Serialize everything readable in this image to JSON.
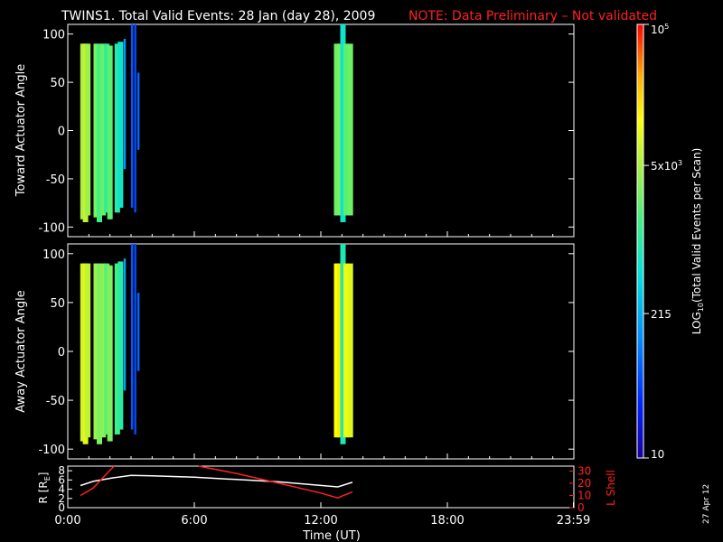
{
  "header": {
    "title": "TWINS1. Total Valid Events: 28 Jan (day  28), 2009",
    "note": "NOTE: Data Preliminary – Not validated"
  },
  "footer": {
    "date_stamp": "27 Apr 12"
  },
  "colors": {
    "background": "#000000",
    "axis": "#ffffff",
    "note": "#ff2020",
    "l_shell": "#ff2020",
    "r_line": "#ffffff"
  },
  "chart_data": [
    {
      "type": "heatmap",
      "panel": "top",
      "ylabel": "Toward Actuator Angle",
      "ylim": [
        -110,
        110
      ],
      "yticks": [
        100,
        50,
        0,
        -50,
        -100
      ],
      "xlim": [
        0,
        24
      ],
      "grid": false,
      "strips": [
        {
          "t": 0.72,
          "y0": -92,
          "y1": 90,
          "level": 0.68
        },
        {
          "t": 0.84,
          "y0": -95,
          "y1": 90,
          "level": 0.7
        },
        {
          "t": 0.95,
          "y0": -88,
          "y1": 90,
          "level": 0.66
        },
        {
          "t": 1.35,
          "y0": -90,
          "y1": 90,
          "level": 0.62
        },
        {
          "t": 1.5,
          "y0": -95,
          "y1": 90,
          "level": 0.55
        },
        {
          "t": 1.68,
          "y0": -88,
          "y1": 90,
          "level": 0.6
        },
        {
          "t": 1.85,
          "y0": -85,
          "y1": 90,
          "level": 0.52
        },
        {
          "t": 2.0,
          "y0": -92,
          "y1": 88,
          "level": 0.58
        },
        {
          "t": 2.35,
          "y0": -85,
          "y1": 90,
          "level": 0.5
        },
        {
          "t": 2.5,
          "y0": -80,
          "y1": 92,
          "level": 0.45
        },
        {
          "t": 2.7,
          "y0": -40,
          "y1": 95,
          "level": 0.3
        },
        {
          "t": 3.05,
          "y0": -80,
          "y1": 110,
          "level": 0.2
        },
        {
          "t": 3.2,
          "y0": -85,
          "y1": 110,
          "level": 0.18
        },
        {
          "t": 3.35,
          "y0": -20,
          "y1": 60,
          "level": 0.22
        },
        {
          "t": 12.75,
          "y0": -88,
          "y1": 90,
          "level": 0.6
        },
        {
          "t": 12.9,
          "y0": -88,
          "y1": 90,
          "level": 0.62
        },
        {
          "t": 13.05,
          "y0": -95,
          "y1": 110,
          "level": 0.45
        },
        {
          "t": 13.2,
          "y0": -88,
          "y1": 90,
          "level": 0.58
        },
        {
          "t": 13.4,
          "y0": -88,
          "y1": 90,
          "level": 0.6
        }
      ]
    },
    {
      "type": "heatmap",
      "panel": "middle",
      "ylabel": "Away Actuator Angle",
      "ylim": [
        -110,
        110
      ],
      "yticks": [
        100,
        50,
        0,
        -50,
        -100
      ],
      "xlim": [
        0,
        24
      ],
      "grid": false,
      "strips": [
        {
          "t": 0.72,
          "y0": -92,
          "y1": 90,
          "level": 0.72
        },
        {
          "t": 0.84,
          "y0": -95,
          "y1": 90,
          "level": 0.74
        },
        {
          "t": 0.95,
          "y0": -88,
          "y1": 90,
          "level": 0.7
        },
        {
          "t": 1.35,
          "y0": -90,
          "y1": 90,
          "level": 0.66
        },
        {
          "t": 1.5,
          "y0": -95,
          "y1": 90,
          "level": 0.62
        },
        {
          "t": 1.68,
          "y0": -88,
          "y1": 90,
          "level": 0.64
        },
        {
          "t": 1.85,
          "y0": -85,
          "y1": 90,
          "level": 0.58
        },
        {
          "t": 2.0,
          "y0": -92,
          "y1": 88,
          "level": 0.62
        },
        {
          "t": 2.35,
          "y0": -85,
          "y1": 90,
          "level": 0.55
        },
        {
          "t": 2.5,
          "y0": -80,
          "y1": 92,
          "level": 0.5
        },
        {
          "t": 2.7,
          "y0": -40,
          "y1": 95,
          "level": 0.32
        },
        {
          "t": 3.05,
          "y0": -80,
          "y1": 110,
          "level": 0.2
        },
        {
          "t": 3.2,
          "y0": -85,
          "y1": 110,
          "level": 0.18
        },
        {
          "t": 3.35,
          "y0": -20,
          "y1": 60,
          "level": 0.22
        },
        {
          "t": 12.75,
          "y0": -88,
          "y1": 90,
          "level": 0.78
        },
        {
          "t": 12.9,
          "y0": -88,
          "y1": 90,
          "level": 0.8
        },
        {
          "t": 13.05,
          "y0": -95,
          "y1": 110,
          "level": 0.48
        },
        {
          "t": 13.2,
          "y0": -88,
          "y1": 90,
          "level": 0.76
        },
        {
          "t": 13.4,
          "y0": -88,
          "y1": 90,
          "level": 0.74
        }
      ]
    },
    {
      "type": "line",
      "panel": "bottom",
      "xlabel": "Time (UT)",
      "ylabel": "R [R",
      "ylabel_sub": "E",
      "ylabel_end": "]",
      "ylim": [
        0,
        9
      ],
      "yticks": [
        "8",
        "6",
        "4",
        "2",
        "0"
      ],
      "yticks_values": [
        8,
        6,
        4,
        2,
        0
      ],
      "right_axis": {
        "label": "L Shell",
        "ylim": [
          0,
          34
        ],
        "ticks": [
          "30",
          "20",
          "10",
          "0"
        ],
        "ticks_values": [
          30,
          20,
          10,
          0
        ]
      },
      "xlim": [
        0,
        24
      ],
      "xtick_labels": [
        "0:00",
        "6:00",
        "12:00",
        "18:00",
        "23:59"
      ],
      "xtick_values": [
        0,
        6,
        12,
        18,
        23.98
      ],
      "series": [
        {
          "axis": "left",
          "color": "#ffffff",
          "x": [
            0.6,
            1.2,
            2.2,
            3.0,
            4.0,
            6.0,
            8.0,
            10.0,
            12.8,
            13.5
          ],
          "y": [
            4.8,
            5.7,
            6.5,
            7.0,
            6.9,
            6.6,
            6.1,
            5.6,
            4.5,
            5.5
          ]
        },
        {
          "axis": "right",
          "color": "#ff2020",
          "x": [
            0.6,
            1.2,
            1.8,
            2.2
          ],
          "y": [
            10,
            16,
            27,
            36
          ]
        },
        {
          "axis": "right",
          "color": "#ff2020",
          "x": [
            6.2,
            8.0,
            10.0,
            12.0,
            12.8,
            13.5
          ],
          "y": [
            36,
            28,
            20,
            12,
            8,
            13
          ]
        }
      ]
    }
  ],
  "colorbar": {
    "label": "LOG",
    "label_sub": "10",
    "label_rest": "(Total Valid Events per Scan)",
    "ticks": [
      {
        "text": "10",
        "value": 10
      },
      {
        "text": "215",
        "value": 215
      },
      {
        "text": "5x10",
        "sup": "3",
        "value": 5000
      },
      {
        "text": "10",
        "sup": "5",
        "value": 100000
      }
    ],
    "range": [
      10,
      100000
    ],
    "scale": "log"
  }
}
